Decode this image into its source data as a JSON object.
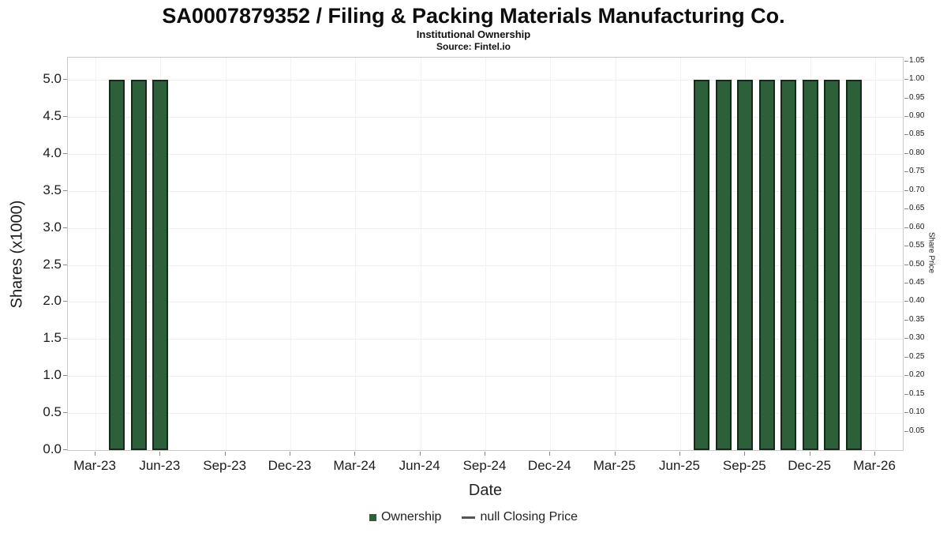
{
  "title": "SA0007879352 / Filing & Packing Materials Manufacturing Co.",
  "subtitle": "Institutional Ownership",
  "source": "Source: Fintel.io",
  "legend": [
    {
      "label": "Ownership",
      "marker": "square",
      "color": "#2d5f38"
    },
    {
      "label": "null Closing Price",
      "marker": "line",
      "color": "#555555"
    }
  ],
  "chart_data": {
    "type": "bar",
    "title": "SA0007879352 / Filing & Packing Materials Manufacturing Co.",
    "subtitle": "Institutional Ownership",
    "source": "Source: Fintel.io",
    "xlabel": "Date",
    "ylabel_left": "Shares (x1000)",
    "ylabel_right": "Share Price",
    "grid": true,
    "legend_position": "bottom",
    "x_months": [
      "Mar-23",
      "Apr-23",
      "May-23",
      "Jun-23",
      "Jul-23",
      "Aug-23",
      "Sep-23",
      "Oct-23",
      "Nov-23",
      "Dec-23",
      "Jan-24",
      "Feb-24",
      "Mar-24",
      "Apr-24",
      "May-24",
      "Jun-24",
      "Jul-24",
      "Aug-24",
      "Sep-24",
      "Oct-24",
      "Nov-24",
      "Dec-24",
      "Jan-25",
      "Feb-25",
      "Mar-25",
      "Apr-25",
      "May-25",
      "Jun-25",
      "Jul-25",
      "Aug-25",
      "Sep-25",
      "Oct-25",
      "Nov-25",
      "Dec-25",
      "Jan-26",
      "Feb-26",
      "Mar-26"
    ],
    "x_tick_labels": [
      "Mar-23",
      "Jun-23",
      "Sep-23",
      "Dec-23",
      "Mar-24",
      "Jun-24",
      "Sep-24",
      "Dec-24",
      "Mar-25",
      "Jun-25",
      "Sep-25",
      "Dec-25",
      "Mar-26"
    ],
    "bars": [
      {
        "month": "Apr-23",
        "value": 5.0
      },
      {
        "month": "May-23",
        "value": 5.0
      },
      {
        "month": "Jun-23",
        "value": 5.0
      },
      {
        "month": "Jul-25",
        "value": 5.0
      },
      {
        "month": "Aug-25",
        "value": 5.0
      },
      {
        "month": "Sep-25",
        "value": 5.0
      },
      {
        "month": "Oct-25",
        "value": 5.0
      },
      {
        "month": "Nov-25",
        "value": 5.0
      },
      {
        "month": "Dec-25",
        "value": 5.0
      },
      {
        "month": "Jan-26",
        "value": 5.0
      },
      {
        "month": "Feb-26",
        "value": 5.0
      }
    ],
    "series": [
      {
        "name": "Ownership",
        "type": "bar",
        "values_note": "5.0 (x1000 shares) for each bar month listed in bars"
      },
      {
        "name": "null Closing Price",
        "type": "line",
        "values_note": "no data shown"
      }
    ],
    "ylim_left": [
      0,
      5.3
    ],
    "yticks_left": [
      "0.0",
      "0.5",
      "1.0",
      "1.5",
      "2.0",
      "2.5",
      "3.0",
      "3.5",
      "4.0",
      "4.5",
      "5.0"
    ],
    "yticks_right": [
      "0.05",
      "0.10",
      "0.15",
      "0.20",
      "0.25",
      "0.30",
      "0.35",
      "0.40",
      "0.45",
      "0.50",
      "0.55",
      "0.60",
      "0.65",
      "0.70",
      "0.75",
      "0.80",
      "0.85",
      "0.90",
      "0.95",
      "1.00",
      "1.05"
    ],
    "bar_color": "#2d5f38",
    "bar_border": "#132b18"
  }
}
